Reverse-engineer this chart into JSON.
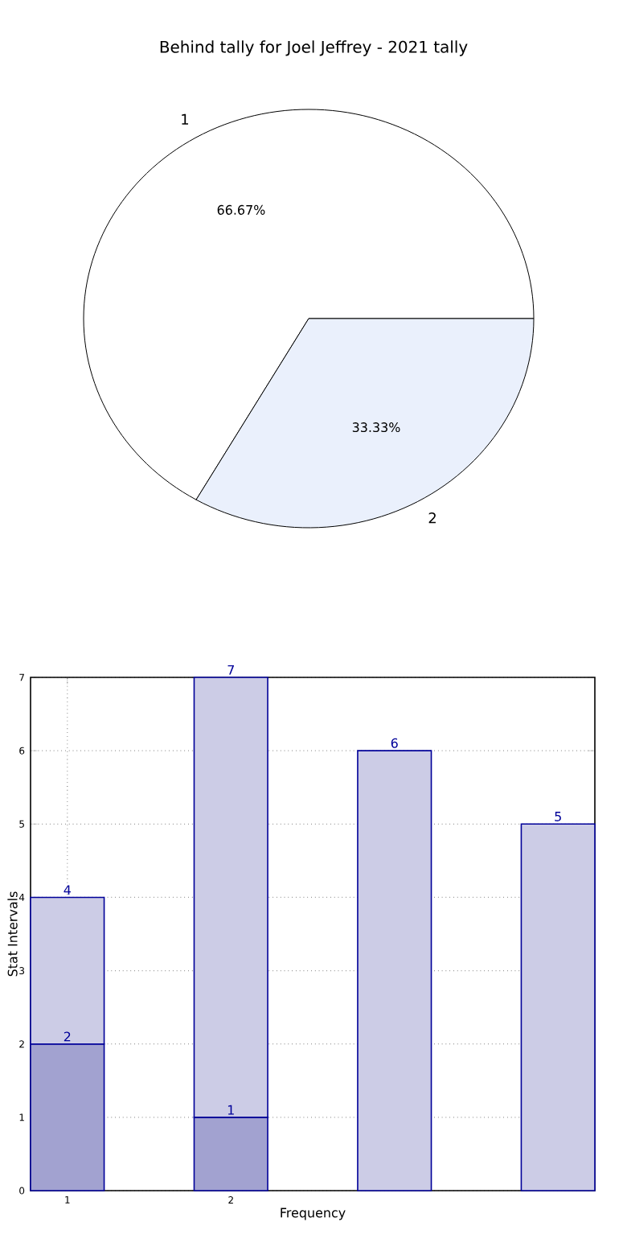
{
  "chart_data": [
    {
      "type": "pie",
      "title": "Behind tally for Joel Jeffrey - 2021 tally",
      "categories": [
        "1",
        "2"
      ],
      "values": [
        66.67,
        33.33
      ],
      "colors": [
        "#ffffff",
        "#eaf0fc"
      ],
      "value_labels": [
        "66.67%",
        "33.33%"
      ]
    },
    {
      "type": "bar",
      "stacked": true,
      "x": [
        1,
        2,
        3,
        4
      ],
      "xlabel": "Frequency",
      "ylabel": "Stat Intervals",
      "xlim": [
        0.775,
        4.225
      ],
      "xticks": [
        1,
        2
      ],
      "ylim": [
        0,
        7
      ],
      "yticks": [
        0,
        1,
        2,
        3,
        4,
        5,
        6,
        7
      ],
      "grid": true,
      "totals": [
        "4",
        "7",
        "6",
        "5"
      ],
      "series": [
        {
          "color": "#a2a2d0",
          "x": [
            1,
            2
          ],
          "values": [
            2,
            1
          ],
          "value_labels": [
            "2",
            "1"
          ]
        },
        {
          "color": "#ccccE6",
          "values": [
            2,
            6,
            6,
            5
          ]
        }
      ]
    }
  ]
}
